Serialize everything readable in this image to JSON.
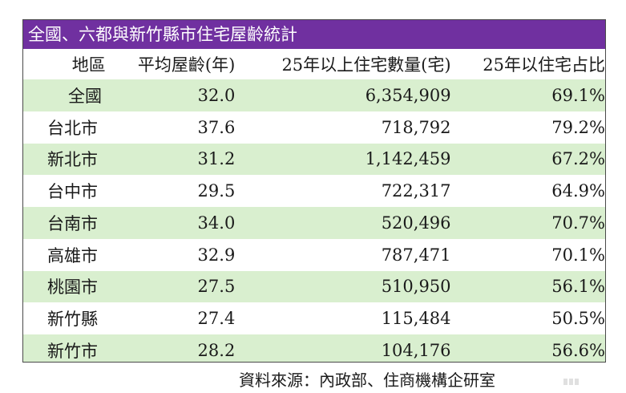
{
  "title": "全國、六都與新竹縣市住宅屋齡統計",
  "headers": {
    "region": "地區",
    "avg_age": "平均屋齡(年)",
    "count": "25年以上住宅數量(宅)",
    "share": "25年以住宅占比"
  },
  "rows": [
    {
      "region": "全國",
      "avg_age": "32.0",
      "count": "6,354,909",
      "share": "69.1%"
    },
    {
      "region": "台北市",
      "avg_age": "37.6",
      "count": "718,792",
      "share": "79.2%"
    },
    {
      "region": "新北市",
      "avg_age": "31.2",
      "count": "1,142,459",
      "share": "67.2%"
    },
    {
      "region": "台中市",
      "avg_age": "29.5",
      "count": "722,317",
      "share": "64.9%"
    },
    {
      "region": "台南市",
      "avg_age": "34.0",
      "count": "520,496",
      "share": "70.7%"
    },
    {
      "region": "高雄市",
      "avg_age": "32.9",
      "count": "787,471",
      "share": "70.1%"
    },
    {
      "region": "桃園市",
      "avg_age": "27.5",
      "count": "510,950",
      "share": "56.1%"
    },
    {
      "region": "新竹縣",
      "avg_age": "27.4",
      "count": "115,484",
      "share": "50.5%"
    },
    {
      "region": "新竹市",
      "avg_age": "28.2",
      "count": "104,176",
      "share": "56.6%"
    }
  ],
  "source": "資料來源：內政部、住商機構企研室",
  "colors": {
    "title_bg": "#7030a0",
    "shade_bg": "#d9efcf"
  }
}
